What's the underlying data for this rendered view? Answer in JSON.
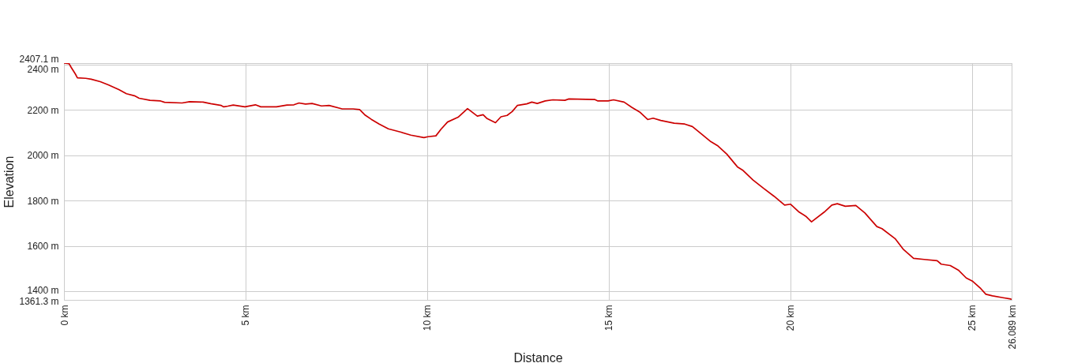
{
  "chart_data": {
    "type": "line",
    "xlabel": "Distance",
    "ylabel": "Elevation",
    "color": "#cc0000",
    "line_style": "solid",
    "grid": true,
    "xlim": [
      0,
      26.089
    ],
    "ylim": [
      1361.3,
      2407.1
    ],
    "xticks": [
      {
        "value": 0,
        "label": "0 km"
      },
      {
        "value": 5,
        "label": "5 km"
      },
      {
        "value": 10,
        "label": "10 km"
      },
      {
        "value": 15,
        "label": "15 km"
      },
      {
        "value": 20,
        "label": "20 km"
      },
      {
        "value": 25,
        "label": "25 km"
      },
      {
        "value": 26.089,
        "label": "26.089 km"
      }
    ],
    "yticks": [
      {
        "value": 1361.3,
        "label": "1361.3 m"
      },
      {
        "value": 1400,
        "label": "1400 m"
      },
      {
        "value": 1600,
        "label": "1600 m"
      },
      {
        "value": 1800,
        "label": "1800 m"
      },
      {
        "value": 2000,
        "label": "2000 m"
      },
      {
        "value": 2200,
        "label": "2200 m"
      },
      {
        "value": 2400,
        "label": "2400 m"
      },
      {
        "value": 2407.1,
        "label": "2407.1 m"
      }
    ],
    "x": [
      0,
      0.14,
      0.2,
      0.31,
      0.37,
      0.6,
      0.75,
      1.0,
      1.22,
      1.51,
      1.72,
      1.94,
      2.07,
      2.37,
      2.66,
      2.77,
      3.25,
      3.46,
      3.83,
      4.04,
      4.33,
      4.4,
      4.51,
      4.66,
      4.98,
      5.27,
      5.42,
      5.85,
      6.14,
      6.33,
      6.47,
      6.65,
      6.83,
      7.09,
      7.3,
      7.66,
      7.96,
      8.14,
      8.28,
      8.46,
      8.68,
      8.93,
      9.26,
      9.55,
      9.91,
      10.02,
      10.24,
      10.38,
      10.56,
      10.85,
      11.11,
      11.38,
      11.54,
      11.65,
      11.88,
      12.03,
      12.2,
      12.34,
      12.48,
      12.74,
      12.88,
      13.03,
      13.25,
      13.46,
      13.79,
      13.9,
      14.62,
      14.7,
      14.98,
      15.13,
      15.42,
      15.64,
      15.85,
      16.07,
      16.22,
      16.43,
      16.8,
      17.09,
      17.3,
      17.52,
      17.81,
      17.99,
      18.25,
      18.54,
      18.68,
      18.97,
      19.26,
      19.55,
      19.84,
      20.0,
      20.24,
      20.42,
      20.58,
      20.93,
      21.14,
      21.29,
      21.51,
      21.8,
      22.05,
      22.38,
      22.52,
      22.88,
      23.1,
      23.39,
      23.68,
      24.04,
      24.15,
      24.4,
      24.62,
      24.84,
      25.02,
      25.24,
      25.38,
      25.56,
      25.85,
      26.065,
      26.089
    ],
    "values": [
      2407.1,
      2405,
      2388,
      2360,
      2342,
      2340,
      2336,
      2325,
      2311,
      2290,
      2272,
      2263,
      2252,
      2243,
      2240,
      2234,
      2231,
      2237,
      2235,
      2228,
      2220,
      2214,
      2217,
      2222,
      2214,
      2223,
      2214,
      2214,
      2222,
      2223,
      2231,
      2226,
      2229,
      2218,
      2220,
      2205,
      2205,
      2202,
      2179,
      2159,
      2138,
      2117,
      2103,
      2089,
      2078,
      2082,
      2086,
      2115,
      2147,
      2168,
      2206,
      2173,
      2179,
      2162,
      2144,
      2170,
      2176,
      2193,
      2220,
      2227,
      2235,
      2229,
      2240,
      2245,
      2243,
      2249,
      2246,
      2240,
      2240,
      2245,
      2235,
      2211,
      2191,
      2158,
      2164,
      2154,
      2142,
      2138,
      2127,
      2098,
      2060,
      2043,
      2005,
      1949,
      1935,
      1891,
      1854,
      1819,
      1780,
      1784,
      1749,
      1731,
      1706,
      1749,
      1780,
      1786,
      1775,
      1778,
      1745,
      1685,
      1676,
      1632,
      1586,
      1545,
      1540,
      1534,
      1519,
      1513,
      1493,
      1458,
      1443,
      1411,
      1386,
      1379,
      1371,
      1365,
      1361.3
    ]
  }
}
